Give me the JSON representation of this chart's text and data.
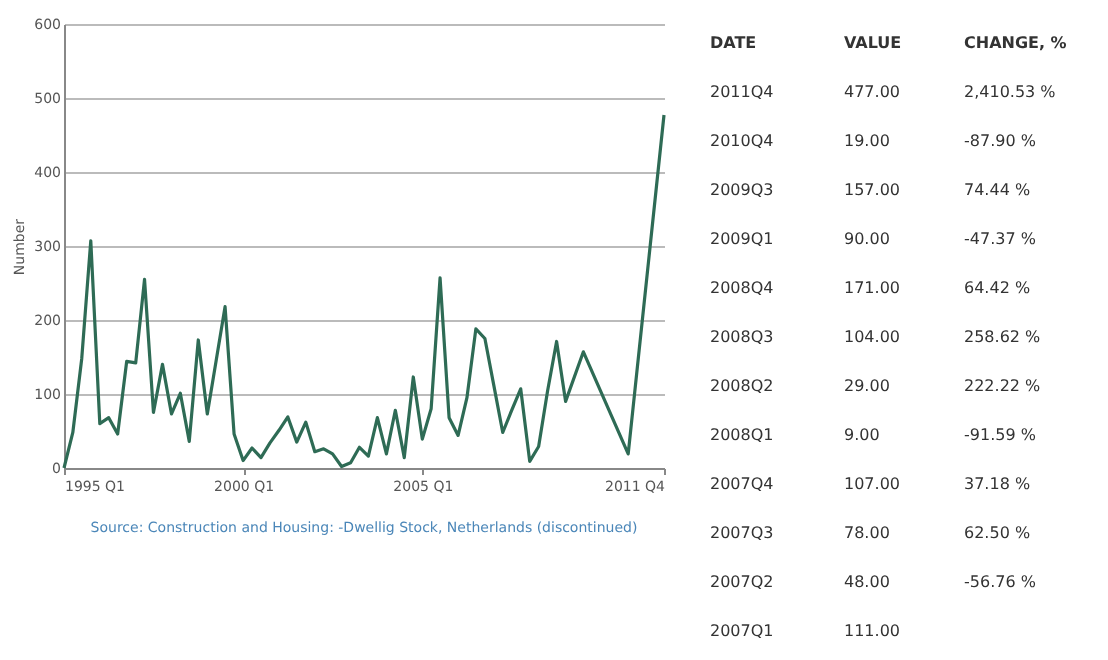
{
  "chart_data": [
    {
      "type": "line",
      "ylabel": "Number",
      "color": "#2e6b55",
      "grid": "y",
      "line_style": "solid",
      "x": [
        "1995-01",
        "1995-04",
        "1995-07",
        "1995-10",
        "1996-01",
        "1996-04",
        "1996-07",
        "1996-10",
        "1997-01",
        "1997-04",
        "1997-07",
        "1997-10",
        "1998-01",
        "1998-04",
        "1998-07",
        "1998-10",
        "1999-01",
        "1999-04",
        "1999-07",
        "1999-10",
        "2000-01",
        "2000-04",
        "2000-07",
        "2000-10",
        "2001-01",
        "2001-04",
        "2001-07",
        "2001-10",
        "2002-01",
        "2002-04",
        "2002-07",
        "2002-10",
        "2003-01",
        "2003-04",
        "2003-07",
        "2003-10",
        "2004-01",
        "2004-04",
        "2004-07",
        "2004-10",
        "2005-01",
        "2005-04",
        "2005-07",
        "2005-10",
        "2006-01",
        "2006-04",
        "2006-07",
        "2006-10",
        "2007-01",
        "2007-04",
        "2007-07",
        "2007-10",
        "2008-01",
        "2008-04",
        "2008-07",
        "2008-10",
        "2009-01",
        "2009-07",
        "2010-10",
        "2011-10"
      ],
      "values": [
        0,
        48,
        148,
        307,
        60,
        68,
        46,
        144,
        142,
        255,
        75,
        140,
        73,
        101,
        36,
        173,
        73,
        145,
        218,
        46,
        10,
        27,
        14,
        34,
        51,
        69,
        35,
        62,
        22,
        26,
        19,
        2,
        7,
        28,
        16,
        68,
        19,
        78,
        14,
        123,
        39,
        80,
        257,
        68,
        44,
        95,
        188,
        175,
        111,
        48,
        78,
        107,
        9,
        29,
        104,
        171,
        90,
        157,
        19,
        477
      ],
      "xlim": [
        "1995-01",
        "2011-10"
      ],
      "xticks": [
        {
          "value": "1995-01",
          "label": "1995 Q1"
        },
        {
          "value": "2000-01",
          "label": "2000 Q1"
        },
        {
          "value": "2005-01",
          "label": "2005 Q1"
        },
        {
          "value": "2011-10",
          "label": "2011 Q4"
        }
      ],
      "ylim": [
        0,
        600
      ],
      "yticks": [
        0,
        100,
        200,
        300,
        400,
        500,
        600
      ],
      "annotations": [
        "Source: Construction and Housing: -Dwellig Stock, Netherlands (discontinued)"
      ]
    },
    {
      "type": "other",
      "annotations": [
        "DATE",
        "VALUE",
        "CHANGE, %",
        "2011Q4",
        "477.00",
        "2,410.53 %",
        "2010Q4",
        "19.00",
        "-87.90 %",
        "2009Q3",
        "157.00",
        "74.44 %",
        "2009Q1",
        "90.00",
        "-47.37 %",
        "2008Q4",
        "171.00",
        "64.42 %",
        "2008Q3",
        "104.00",
        "258.62 %",
        "2008Q2",
        "29.00",
        "222.22 %",
        "2008Q1",
        "9.00",
        "-91.59 %",
        "2007Q4",
        "107.00",
        "37.18 %",
        "2007Q3",
        "78.00",
        "62.50 %",
        "2007Q2",
        "48.00",
        "-56.76 %",
        "2007Q1",
        "111.00"
      ]
    }
  ]
}
